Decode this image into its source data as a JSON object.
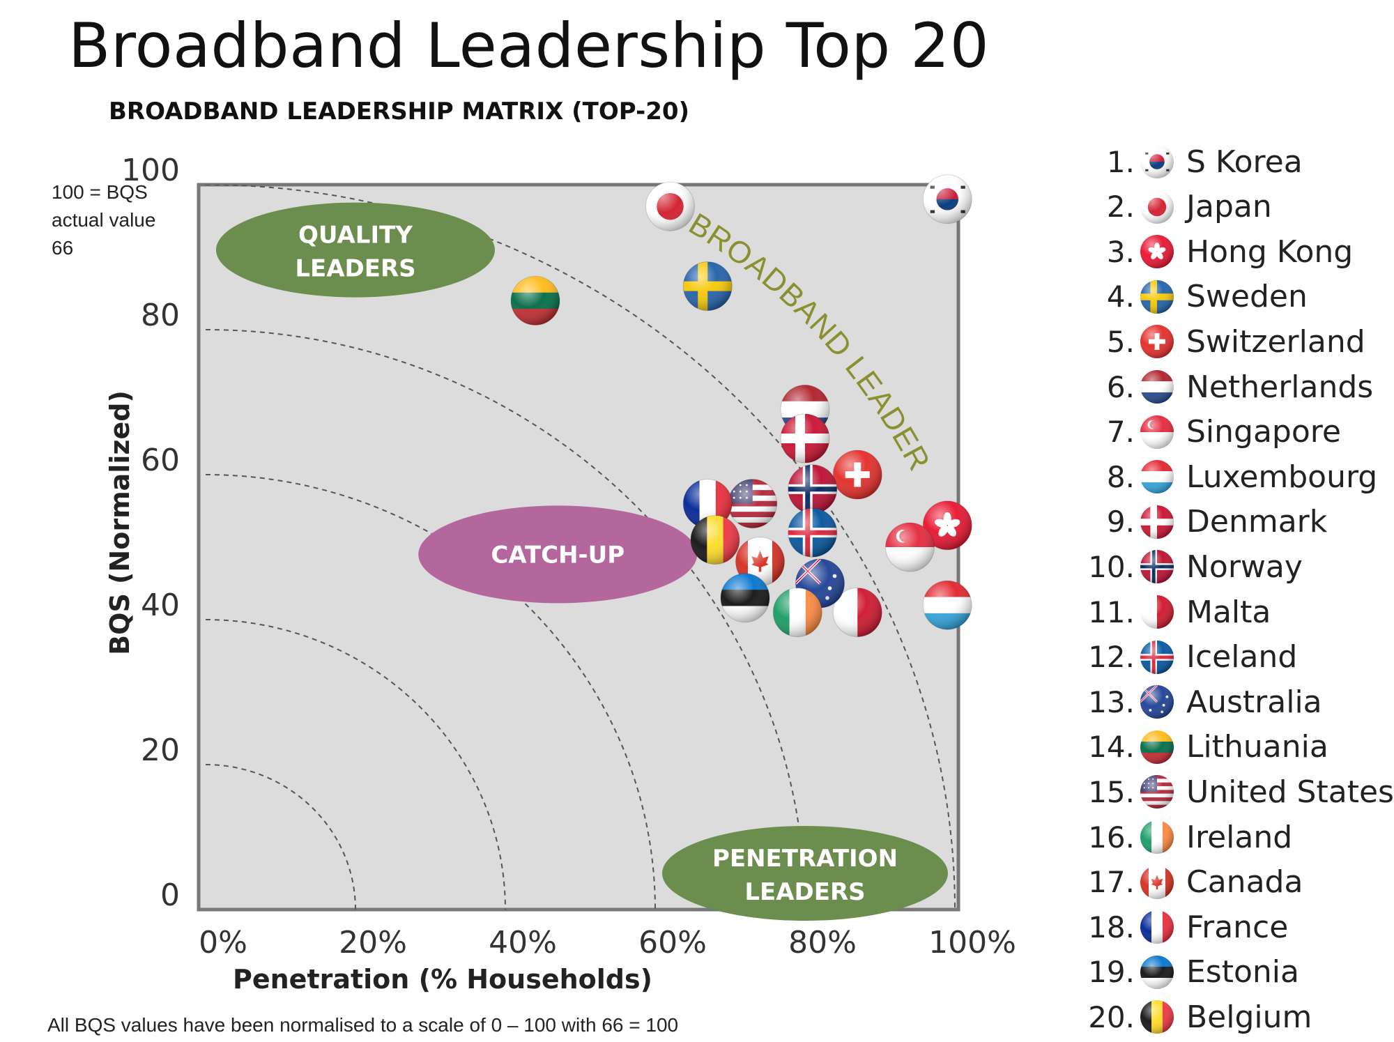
{
  "title": "Broadband Leadership Top 20",
  "subtitle": "BROADBAND LEADERSHIP MATRIX (TOP-20)",
  "note_top": "100 = BQS actual value 66",
  "footnote": "All BQS values have been normalised to a scale of 0 – 100 with 66 = 100",
  "chart_data": {
    "type": "scatter",
    "title": "BROADBAND LEADERSHIP MATRIX (TOP-20)",
    "xlabel": "Penetration (% Households)",
    "ylabel": "BQS (Normalized)",
    "xlim": [
      0,
      100
    ],
    "ylim": [
      0,
      100
    ],
    "x_ticks": [
      "0%",
      "20%",
      "40%",
      "60%",
      "80%",
      "100%"
    ],
    "y_ticks": [
      "0",
      "20",
      "40",
      "60",
      "80",
      "100"
    ],
    "grid": false,
    "arcs_at": [
      20,
      40,
      60,
      80,
      100
    ],
    "regions": [
      {
        "label": "QUALITY LEADERS",
        "x": 20,
        "y": 91,
        "color": "#6b8e4e"
      },
      {
        "label": "CATCH-UP",
        "x": 47,
        "y": 49,
        "color": "#b3679c"
      },
      {
        "label": "PENETRATION LEADERS",
        "x": 80,
        "y": 5,
        "color": "#6b8e4e"
      }
    ],
    "annotation": "BROADBAND LEADERS",
    "legend_position": "right",
    "points": [
      {
        "rank": "1.",
        "name": "S Korea",
        "x": 99,
        "y": 98,
        "flag": "korea"
      },
      {
        "rank": "2.",
        "name": "Japan",
        "x": 62,
        "y": 97,
        "flag": "japan"
      },
      {
        "rank": "3.",
        "name": "Hong Kong",
        "x": 99,
        "y": 53,
        "flag": "hongkong"
      },
      {
        "rank": "4.",
        "name": "Sweden",
        "x": 67,
        "y": 86,
        "flag": "sweden"
      },
      {
        "rank": "5.",
        "name": "Switzerland",
        "x": 87,
        "y": 60,
        "flag": "switzerland"
      },
      {
        "rank": "6.",
        "name": "Netherlands",
        "x": 80,
        "y": 69,
        "flag": "netherlands"
      },
      {
        "rank": "7.",
        "name": "Singapore",
        "x": 94,
        "y": 50,
        "flag": "singapore"
      },
      {
        "rank": "8.",
        "name": "Luxembourg",
        "x": 99,
        "y": 42,
        "flag": "luxembourg"
      },
      {
        "rank": "9.",
        "name": "Denmark",
        "x": 80,
        "y": 65,
        "flag": "denmark"
      },
      {
        "rank": "10.",
        "name": "Norway",
        "x": 81,
        "y": 58,
        "flag": "norway"
      },
      {
        "rank": "11.",
        "name": "Malta",
        "x": 87,
        "y": 41,
        "flag": "malta"
      },
      {
        "rank": "12.",
        "name": "Iceland",
        "x": 81,
        "y": 52,
        "flag": "iceland"
      },
      {
        "rank": "13.",
        "name": "Australia",
        "x": 82,
        "y": 45,
        "flag": "australia"
      },
      {
        "rank": "14.",
        "name": "Lithuania",
        "x": 44,
        "y": 84,
        "flag": "lithuania"
      },
      {
        "rank": "15.",
        "name": "United States",
        "x": 73,
        "y": 56,
        "flag": "usa"
      },
      {
        "rank": "16.",
        "name": "Ireland",
        "x": 79,
        "y": 41,
        "flag": "ireland"
      },
      {
        "rank": "17.",
        "name": "Canada",
        "x": 74,
        "y": 48,
        "flag": "canada"
      },
      {
        "rank": "18.",
        "name": "France",
        "x": 67,
        "y": 56,
        "flag": "france"
      },
      {
        "rank": "19.",
        "name": "Estonia",
        "x": 72,
        "y": 43,
        "flag": "estonia"
      },
      {
        "rank": "20.",
        "name": "Belgium",
        "x": 68,
        "y": 51,
        "flag": "belgium"
      }
    ]
  }
}
